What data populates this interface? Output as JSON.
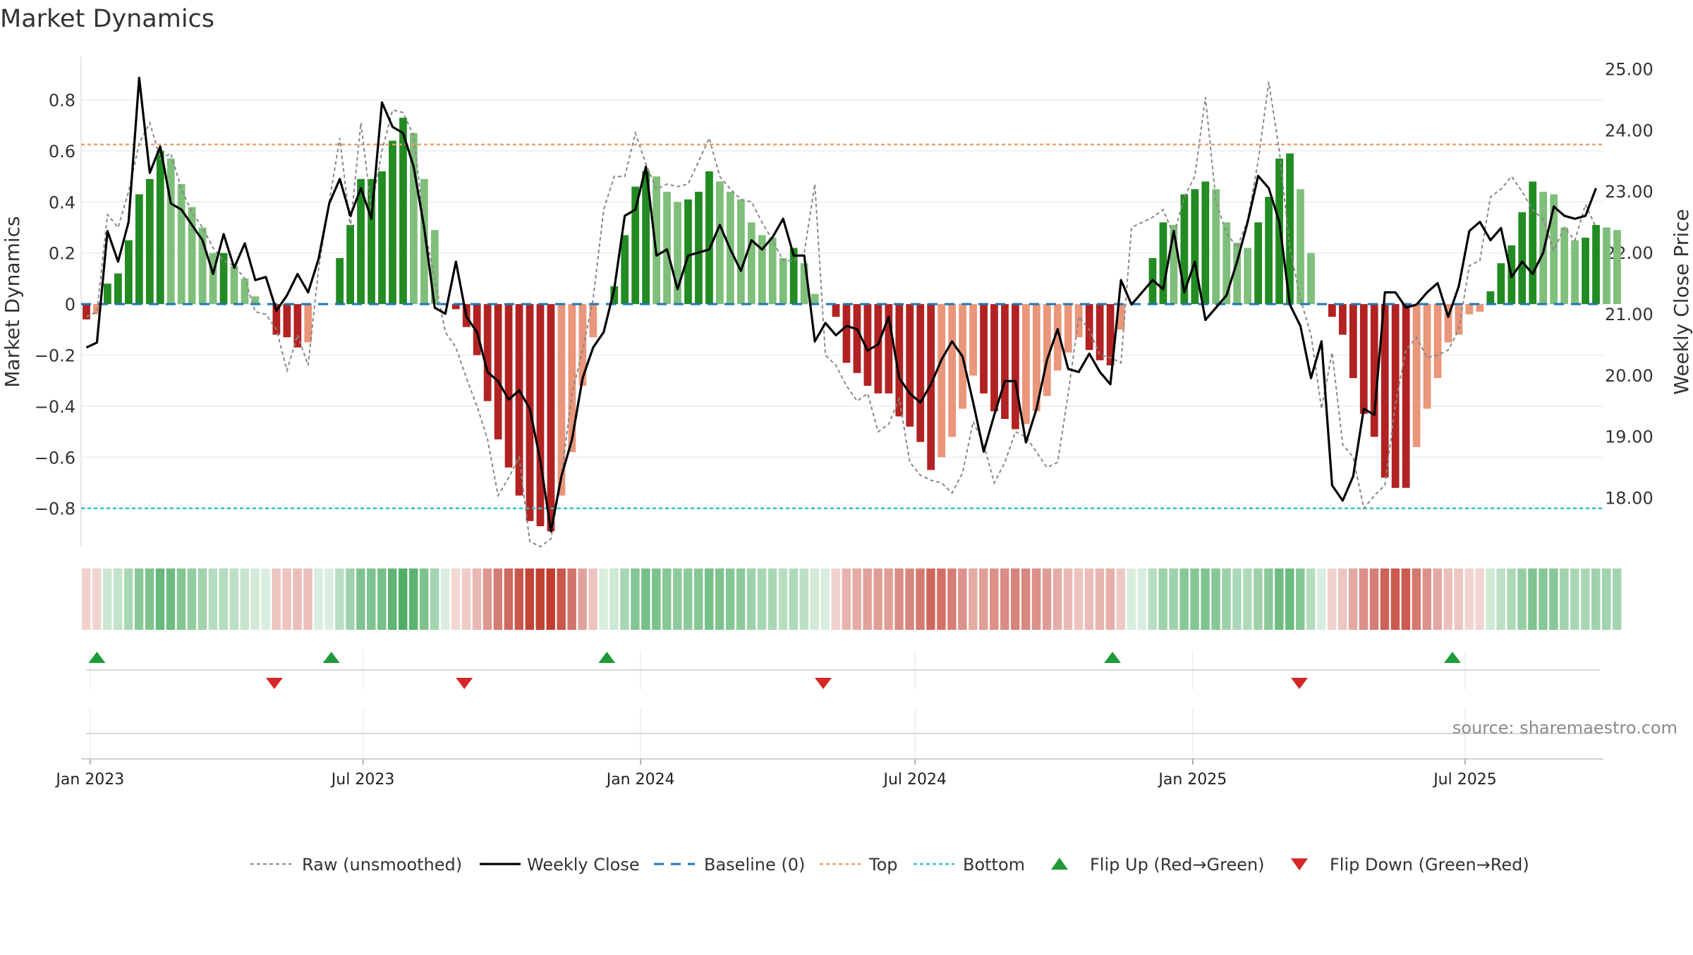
{
  "chart_data": {
    "type": "bar",
    "title": "Market Dynamics",
    "ylabel_left": "Market Dynamics",
    "ylabel_right": "Weekly Close Price",
    "left_ylim": [
      -0.95,
      0.97
    ],
    "right_ylim": [
      17.2,
      25.2
    ],
    "left_ticks": [
      "−0.8",
      "−0.6",
      "−0.4",
      "−0.2",
      "0",
      "0.2",
      "0.4",
      "0.6",
      "0.8"
    ],
    "left_tick_values": [
      -0.8,
      -0.6,
      -0.4,
      -0.2,
      0,
      0.2,
      0.4,
      0.6,
      0.8
    ],
    "right_ticks": [
      "18.00",
      "19.00",
      "20.00",
      "21.00",
      "22.00",
      "23.00",
      "24.00",
      "25.00"
    ],
    "right_tick_values": [
      18,
      19,
      20,
      21,
      22,
      23,
      24,
      25
    ],
    "x_start": "2022-12-26",
    "x_range_weeks": [
      0,
      144.2
    ],
    "x_ticks": [
      {
        "label": "Jan 2023",
        "week": 0.86
      },
      {
        "label": "Jul 2023",
        "week": 26.7
      },
      {
        "label": "Jan 2024",
        "week": 53.0
      },
      {
        "label": "Jul 2024",
        "week": 79.0
      },
      {
        "label": "Jan 2025",
        "week": 105.3
      },
      {
        "label": "Jul 2025",
        "week": 131.1
      }
    ],
    "top_level": 0.625,
    "bottom_level": -0.8,
    "market_dynamics": [
      -0.06,
      -0.04,
      0.08,
      0.12,
      0.25,
      0.43,
      0.49,
      0.6,
      0.57,
      0.47,
      0.38,
      0.3,
      0.2,
      0.2,
      0.15,
      0.1,
      0.03,
      0,
      -0.12,
      -0.13,
      -0.17,
      -0.15,
      0,
      0,
      0.18,
      0.31,
      0.49,
      0.49,
      0.52,
      0.64,
      0.73,
      0.67,
      0.49,
      0.29,
      0,
      -0.02,
      -0.09,
      -0.2,
      -0.38,
      -0.53,
      -0.64,
      -0.75,
      -0.85,
      -0.87,
      -0.89,
      -0.75,
      -0.58,
      -0.32,
      -0.13,
      0,
      0.07,
      0.27,
      0.46,
      0.52,
      0.5,
      0.44,
      0.4,
      0.41,
      0.44,
      0.52,
      0.48,
      0.44,
      0.41,
      0.32,
      0.27,
      0.26,
      0.18,
      0.22,
      0.16,
      0.04,
      0,
      -0.05,
      -0.23,
      -0.27,
      -0.32,
      -0.35,
      -0.35,
      -0.44,
      -0.48,
      -0.54,
      -0.65,
      -0.6,
      -0.52,
      -0.41,
      -0.28,
      -0.35,
      -0.42,
      -0.45,
      -0.49,
      -0.47,
      -0.42,
      -0.36,
      -0.26,
      -0.19,
      -0.13,
      -0.18,
      -0.22,
      -0.24,
      -0.1,
      0,
      0,
      0.18,
      0.32,
      0.31,
      0.43,
      0.45,
      0.48,
      0.45,
      0.32,
      0.24,
      0.22,
      0.32,
      0.42,
      0.57,
      0.59,
      0.45,
      0.2,
      0,
      -0.05,
      -0.12,
      -0.29,
      -0.43,
      -0.52,
      -0.68,
      -0.72,
      -0.72,
      -0.56,
      -0.41,
      -0.29,
      -0.15,
      -0.12,
      -0.04,
      -0.03,
      0.05,
      0.16,
      0.23,
      0.36,
      0.48,
      0.44,
      0.43,
      0.3,
      0.25,
      0.26,
      0.31,
      0.3,
      0.29
    ],
    "raw_unsmoothed": [
      -0.05,
      -0.03,
      0.35,
      0.3,
      0.44,
      0.63,
      0.71,
      0.57,
      0.59,
      0.45,
      0.36,
      0.3,
      0.22,
      0.17,
      0.15,
      0.1,
      -0.03,
      -0.04,
      -0.1,
      -0.26,
      -0.12,
      -0.24,
      0.14,
      0.4,
      0.65,
      0.3,
      0.71,
      0.37,
      0.6,
      0.76,
      0.75,
      0.66,
      0.3,
      0.1,
      -0.11,
      -0.17,
      -0.29,
      -0.4,
      -0.53,
      -0.75,
      -0.68,
      -0.6,
      -0.93,
      -0.95,
      -0.92,
      -0.67,
      -0.35,
      -0.18,
      0.02,
      0.37,
      0.5,
      0.5,
      0.67,
      0.55,
      0.45,
      0.47,
      0.46,
      0.47,
      0.56,
      0.65,
      0.5,
      0.45,
      0.41,
      0.4,
      0.32,
      0.25,
      0.17,
      0.17,
      0.2,
      0.47,
      -0.2,
      -0.24,
      -0.32,
      -0.38,
      -0.35,
      -0.5,
      -0.47,
      -0.37,
      -0.62,
      -0.67,
      -0.69,
      -0.7,
      -0.74,
      -0.66,
      -0.46,
      -0.55,
      -0.7,
      -0.62,
      -0.5,
      -0.52,
      -0.58,
      -0.64,
      -0.62,
      -0.35,
      -0.05,
      -0.1,
      -0.2,
      -0.21,
      -0.23,
      0.3,
      0.32,
      0.34,
      0.37,
      0.27,
      0.42,
      0.5,
      0.81,
      0.4,
      0.28,
      0.22,
      0.33,
      0.56,
      0.87,
      0.6,
      0.22,
      0.02,
      -0.12,
      -0.41,
      -0.19,
      -0.55,
      -0.6,
      -0.8,
      -0.75,
      -0.71,
      -0.39,
      -0.18,
      -0.13,
      -0.21,
      -0.2,
      -0.18,
      -0.1,
      0.15,
      0.17,
      0.42,
      0.45,
      0.5,
      0.44,
      0.37,
      0.33,
      0.21,
      0.3,
      0.25,
      0.39,
      0.3
    ],
    "weekly_close": [
      20.45,
      20.53,
      22.35,
      21.85,
      22.5,
      24.85,
      23.3,
      23.73,
      22.8,
      22.7,
      22.45,
      22.2,
      21.65,
      22.3,
      21.75,
      22.15,
      21.55,
      21.6,
      21.05,
      21.3,
      21.65,
      21.35,
      21.9,
      22.8,
      23.2,
      22.6,
      23.05,
      22.55,
      24.45,
      24.05,
      23.95,
      23.4,
      22.4,
      21.1,
      21.0,
      21.85,
      20.95,
      20.7,
      20.05,
      19.9,
      19.6,
      19.75,
      19.45,
      18.6,
      17.45,
      18.35,
      18.95,
      19.95,
      20.45,
      20.7,
      21.4,
      22.6,
      22.7,
      23.4,
      21.95,
      22.05,
      21.4,
      21.95,
      22.0,
      22.05,
      22.45,
      22.05,
      21.7,
      22.2,
      22.05,
      22.25,
      22.55,
      21.95,
      21.95,
      20.55,
      20.85,
      20.65,
      20.8,
      20.75,
      20.4,
      20.5,
      20.95,
      19.95,
      19.7,
      19.55,
      19.85,
      20.25,
      20.55,
      20.3,
      19.55,
      18.75,
      19.35,
      19.9,
      19.9,
      18.9,
      19.45,
      20.25,
      20.75,
      20.1,
      20.05,
      20.35,
      20.05,
      19.85,
      21.55,
      21.15,
      21.35,
      21.55,
      21.4,
      22.35,
      21.35,
      21.85,
      20.9,
      21.1,
      21.3,
      21.85,
      22.5,
      23.25,
      23.05,
      22.5,
      21.15,
      20.8,
      19.95,
      20.55,
      18.2,
      17.95,
      18.35,
      19.45,
      19.35,
      21.35,
      21.35,
      21.1,
      21.15,
      21.35,
      21.5,
      20.95,
      21.45,
      22.35,
      22.5,
      22.2,
      22.4,
      21.6,
      21.85,
      21.65,
      22.0,
      22.75,
      22.6,
      22.55,
      22.6,
      23.05
    ],
    "flip_up_weeks": [
      1.5,
      23.7,
      49.8,
      97.7,
      129.9
    ],
    "flip_down_weeks": [
      18.3,
      36.3,
      70.3,
      115.4
    ],
    "source_label": "source: sharemaestro.com",
    "legend": [
      {
        "key": "raw",
        "label": "Raw (unsmoothed)",
        "color": "#888888"
      },
      {
        "key": "close",
        "label": "Weekly Close",
        "color": "#000000"
      },
      {
        "key": "baseline",
        "label": "Baseline (0)",
        "color": "#1f77b4"
      },
      {
        "key": "top",
        "label": "Top",
        "color": "#e8a06a"
      },
      {
        "key": "bottom",
        "label": "Bottom",
        "color": "#2ec4c4"
      },
      {
        "key": "flipup",
        "label": "Flip Up (Red→Green)",
        "color": "#1f9a3a"
      },
      {
        "key": "flipdown",
        "label": "Flip Down (Green→Red)",
        "color": "#d62728"
      }
    ],
    "colors": {
      "green_dark": "#228b22",
      "green_light": "#7fbf7b",
      "red_dark": "#b22222",
      "red_light": "#e9967a",
      "heat_green": "#2e9e4a",
      "heat_red": "#c0392b"
    }
  }
}
